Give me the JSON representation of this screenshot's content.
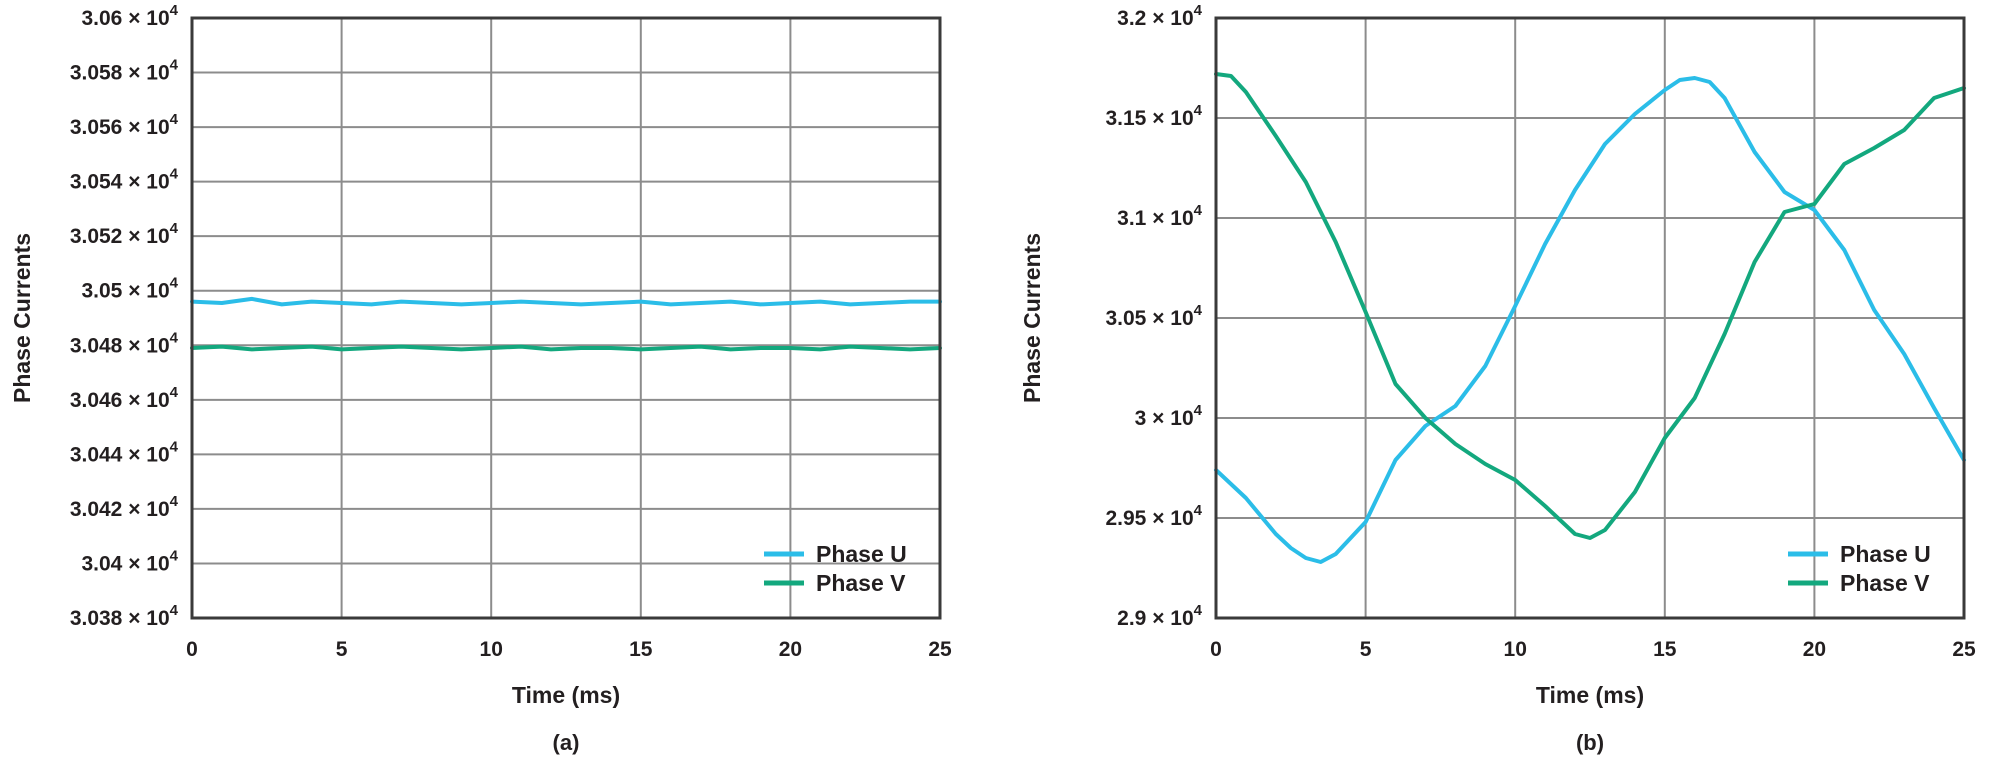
{
  "colors": {
    "phase_u": "#2bbde8",
    "phase_v": "#13a87e",
    "grid": "#8c8c8c",
    "frame": "#3a3a3a"
  },
  "chart_data": [
    {
      "type": "line",
      "caption": "(a)",
      "xlabel": "Time (ms)",
      "ylabel": "Phase Currents",
      "xlim": [
        0,
        25
      ],
      "ylim": [
        30380,
        30600
      ],
      "x_ticks": [
        0,
        5,
        10,
        15,
        20,
        25
      ],
      "x_tick_labels": [
        "0",
        "5",
        "10",
        "15",
        "20",
        "25"
      ],
      "y_ticks": [
        30380,
        30400,
        30420,
        30440,
        30460,
        30480,
        30500,
        30520,
        30540,
        30560,
        30580,
        30600
      ],
      "y_tick_mantissas": [
        "3.038",
        "3.04",
        "3.042",
        "3.044",
        "3.046",
        "3.048",
        "3.05",
        "3.052",
        "3.054",
        "3.056",
        "3.058",
        "3.06"
      ],
      "y_tick_suffix": "× 10",
      "y_tick_exponent": "4",
      "grid": true,
      "legend_position": "bottom-right",
      "series": [
        {
          "name": "Phase U",
          "color": "#2bbde8",
          "x": [
            0,
            1,
            2,
            3,
            4,
            5,
            6,
            7,
            8,
            9,
            10,
            11,
            12,
            13,
            14,
            15,
            16,
            17,
            18,
            19,
            20,
            21,
            22,
            23,
            24,
            25
          ],
          "y": [
            30496,
            30495.5,
            30497,
            30495,
            30496,
            30495.5,
            30495,
            30496,
            30495.5,
            30495,
            30495.5,
            30496,
            30495.5,
            30495,
            30495.5,
            30496,
            30495,
            30495.5,
            30496,
            30495,
            30495.5,
            30496,
            30495,
            30495.5,
            30496,
            30496
          ]
        },
        {
          "name": "Phase V",
          "color": "#13a87e",
          "x": [
            0,
            1,
            2,
            3,
            4,
            5,
            6,
            7,
            8,
            9,
            10,
            11,
            12,
            13,
            14,
            15,
            16,
            17,
            18,
            19,
            20,
            21,
            22,
            23,
            24,
            25
          ],
          "y": [
            30479,
            30479.5,
            30478.5,
            30479,
            30479.5,
            30478.5,
            30479,
            30479.5,
            30479,
            30478.5,
            30479,
            30479.5,
            30478.5,
            30479,
            30479,
            30478.5,
            30479,
            30479.5,
            30478.5,
            30479,
            30479,
            30478.5,
            30479.5,
            30479,
            30478.5,
            30479
          ]
        }
      ]
    },
    {
      "type": "line",
      "caption": "(b)",
      "xlabel": "Time (ms)",
      "ylabel": "Phase Currents",
      "xlim": [
        0,
        25
      ],
      "ylim": [
        29000,
        32000
      ],
      "x_ticks": [
        0,
        5,
        10,
        15,
        20,
        25
      ],
      "x_tick_labels": [
        "0",
        "5",
        "10",
        "15",
        "20",
        "25"
      ],
      "y_ticks": [
        29000,
        29500,
        30000,
        30500,
        31000,
        31500,
        32000
      ],
      "y_tick_mantissas": [
        "2.9",
        "2.95",
        "3",
        "3.05",
        "3.1",
        "3.15",
        "3.2"
      ],
      "y_tick_suffix": "× 10",
      "y_tick_exponent": "4",
      "grid": true,
      "legend_position": "bottom-right",
      "series": [
        {
          "name": "Phase U",
          "color": "#2bbde8",
          "x": [
            0,
            1,
            2,
            2.5,
            3,
            3.5,
            4,
            5,
            6,
            7,
            8,
            9,
            10,
            11,
            12,
            13,
            14,
            15,
            15.5,
            16,
            16.5,
            17,
            18,
            19,
            20,
            21,
            22,
            23,
            24,
            25
          ],
          "y": [
            29740,
            29600,
            29420,
            29350,
            29300,
            29280,
            29320,
            29480,
            29790,
            29960,
            30060,
            30260,
            30560,
            30870,
            31140,
            31370,
            31520,
            31640,
            31690,
            31700,
            31680,
            31600,
            31330,
            31130,
            31040,
            30840,
            30540,
            30320,
            30050,
            29790
          ]
        },
        {
          "name": "Phase V",
          "color": "#13a87e",
          "x": [
            0,
            0.5,
            1,
            2,
            3,
            4,
            5,
            6,
            7,
            8,
            9,
            10,
            11,
            12,
            12.5,
            13,
            14,
            15,
            16,
            17,
            18,
            19,
            20,
            21,
            22,
            23,
            24,
            25
          ],
          "y": [
            31720,
            31710,
            31630,
            31410,
            31180,
            30880,
            30530,
            30170,
            30000,
            29870,
            29770,
            29690,
            29560,
            29420,
            29400,
            29440,
            29630,
            29900,
            30100,
            30420,
            30780,
            31030,
            31070,
            31270,
            31350,
            31440,
            31600,
            31650
          ]
        }
      ]
    }
  ]
}
